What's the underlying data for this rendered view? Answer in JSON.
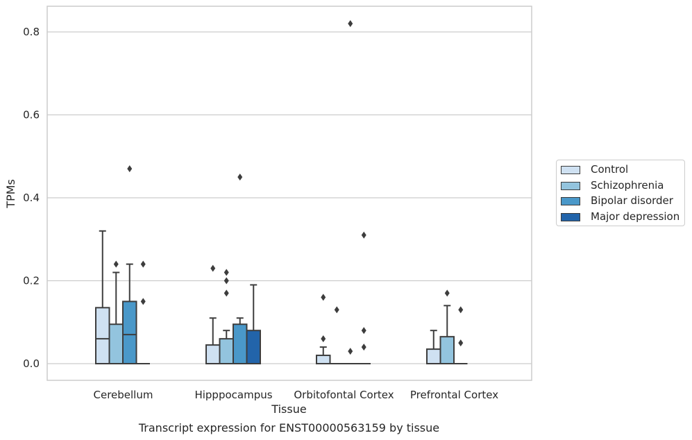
{
  "chart_data": {
    "type": "boxplot",
    "title": "Transcript expression for ENST00000563159 by tissue",
    "xlabel": "Tissue",
    "ylabel": "TPMs",
    "ylim": [
      -0.04,
      0.862
    ],
    "yticks": [
      0.0,
      0.2,
      0.4,
      0.6,
      0.8
    ],
    "ytick_labels": [
      "0.0",
      "0.2",
      "0.4",
      "0.6",
      "0.8"
    ],
    "grid": true,
    "legend_position": "right",
    "categories": [
      "Cerebellum",
      "Hipppocampus",
      "Orbitofontal Cortex",
      "Prefrontal Cortex"
    ],
    "series": [
      {
        "name": "Control",
        "color": "#cfe1f2",
        "boxes": [
          {
            "q1": 0.0,
            "median": 0.06,
            "q3": 0.135,
            "whisker_low": 0.0,
            "whisker_high": 0.32,
            "outliers": []
          },
          {
            "q1": 0.0,
            "median": 0.0,
            "q3": 0.045,
            "whisker_low": 0.0,
            "whisker_high": 0.11,
            "outliers": [
              0.23
            ]
          },
          {
            "q1": 0.0,
            "median": 0.0,
            "q3": 0.02,
            "whisker_low": 0.0,
            "whisker_high": 0.04,
            "outliers": [
              0.06,
              0.16
            ]
          },
          {
            "q1": 0.0,
            "median": 0.0,
            "q3": 0.035,
            "whisker_low": 0.0,
            "whisker_high": 0.08,
            "outliers": []
          }
        ]
      },
      {
        "name": "Schizophrenia",
        "color": "#93c4de",
        "boxes": [
          {
            "q1": 0.0,
            "median": 0.0,
            "q3": 0.095,
            "whisker_low": 0.0,
            "whisker_high": 0.22,
            "outliers": [
              0.24
            ]
          },
          {
            "q1": 0.0,
            "median": 0.0,
            "q3": 0.06,
            "whisker_low": 0.0,
            "whisker_high": 0.08,
            "outliers": [
              0.17,
              0.2,
              0.22
            ]
          },
          {
            "q1": 0.0,
            "median": 0.0,
            "q3": 0.0,
            "whisker_low": 0.0,
            "whisker_high": 0.0,
            "outliers": [
              0.13
            ]
          },
          {
            "q1": 0.0,
            "median": 0.0,
            "q3": 0.065,
            "whisker_low": 0.0,
            "whisker_high": 0.14,
            "outliers": [
              0.17
            ]
          }
        ]
      },
      {
        "name": "Bipolar disorder",
        "color": "#4a98c9",
        "boxes": [
          {
            "q1": 0.0,
            "median": 0.07,
            "q3": 0.15,
            "whisker_low": 0.0,
            "whisker_high": 0.24,
            "outliers": [
              0.47
            ]
          },
          {
            "q1": 0.0,
            "median": 0.0,
            "q3": 0.095,
            "whisker_low": 0.0,
            "whisker_high": 0.11,
            "outliers": [
              0.45
            ]
          },
          {
            "q1": 0.0,
            "median": 0.0,
            "q3": 0.0,
            "whisker_low": 0.0,
            "whisker_high": 0.0,
            "outliers": [
              0.03,
              0.82
            ]
          },
          {
            "q1": 0.0,
            "median": 0.0,
            "q3": 0.0,
            "whisker_low": 0.0,
            "whisker_high": 0.0,
            "outliers": [
              0.05,
              0.13
            ]
          }
        ]
      },
      {
        "name": "Major depression",
        "color": "#2264aa",
        "boxes": [
          {
            "q1": 0.0,
            "median": 0.0,
            "q3": 0.0,
            "whisker_low": 0.0,
            "whisker_high": 0.0,
            "outliers": [
              0.15,
              0.24
            ]
          },
          {
            "q1": 0.0,
            "median": 0.0,
            "q3": 0.08,
            "whisker_low": 0.0,
            "whisker_high": 0.19,
            "outliers": []
          },
          {
            "q1": 0.0,
            "median": 0.0,
            "q3": 0.0,
            "whisker_low": 0.0,
            "whisker_high": 0.0,
            "outliers": [
              0.04,
              0.08,
              0.31
            ]
          },
          null
        ]
      }
    ]
  }
}
